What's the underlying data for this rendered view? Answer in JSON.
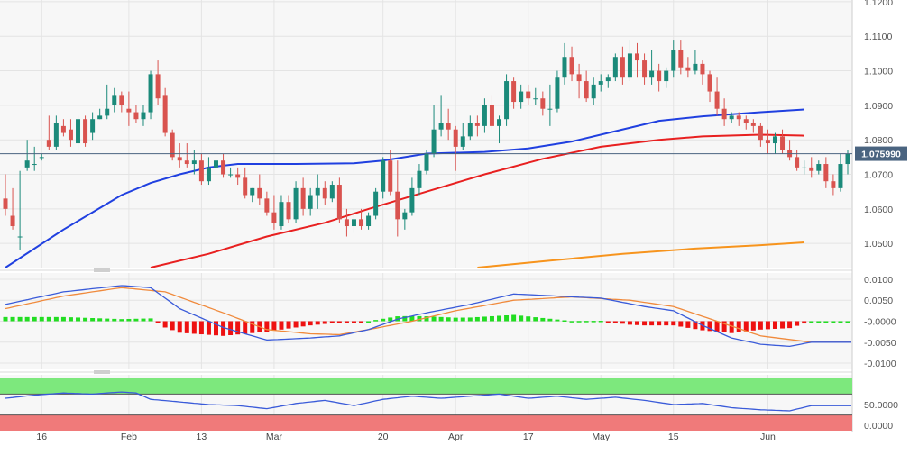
{
  "colors": {
    "bull": "#1b8a7a",
    "bear": "#d9534f",
    "sma_fast": "#2040e0",
    "sma_mid": "#e82020",
    "sma_slow": "#f7941d",
    "last_price_line": "#4a6480",
    "last_price_bg": "#4a6480",
    "panel_bg": "#f5f5f5",
    "macd_line": "#3a5bd9",
    "macd_signal": "#f08a3c",
    "hist_pos": "#22dd22",
    "hist_neg": "#ee1111",
    "rsi_line": "#3a5bd9",
    "rsi_overbought": "#7de87d",
    "rsi_oversold": "#f07a7a"
  },
  "chart_data": [
    {
      "type": "candlestick",
      "panel": "price",
      "ylim": [
        1.043,
        1.1205
      ],
      "y_ticks": [
        "1.1200",
        "1.1100",
        "1.1000",
        "1.0900",
        "1.0800",
        "1.0700",
        "1.0600",
        "1.0500"
      ],
      "last_price": "1.075990",
      "x_ticks": [
        {
          "label": "16",
          "index": 5
        },
        {
          "label": "Feb",
          "index": 17
        },
        {
          "label": "13",
          "index": 27
        },
        {
          "label": "Mar",
          "index": 37
        },
        {
          "label": "20",
          "index": 52
        },
        {
          "label": "Apr",
          "index": 62
        },
        {
          "label": "17",
          "index": 72
        },
        {
          "label": "May",
          "index": 82
        },
        {
          "label": "15",
          "index": 92
        },
        {
          "label": "Jun",
          "index": 105
        }
      ],
      "candles": [
        [
          1.063,
          1.07,
          1.06,
          1.058
        ],
        [
          1.058,
          1.066,
          1.055,
          1.054
        ],
        [
          1.052,
          1.071,
          1.052,
          1.048
        ],
        [
          1.072,
          1.08,
          1.074,
          1.071
        ],
        [
          1.073,
          1.078,
          1.073,
          1.071
        ],
        [
          1.075,
          1.076,
          1.075,
          1.074
        ],
        [
          1.08,
          1.087,
          1.078,
          1.077
        ],
        [
          1.078,
          1.087,
          1.085,
          1.077
        ],
        [
          1.084,
          1.086,
          1.082,
          1.081
        ],
        [
          1.083,
          1.086,
          1.08,
          1.078
        ],
        [
          1.079,
          1.087,
          1.086,
          1.077
        ],
        [
          1.086,
          1.087,
          1.079,
          1.078
        ],
        [
          1.082,
          1.088,
          1.086,
          1.08
        ],
        [
          1.086,
          1.089,
          1.087,
          1.086
        ],
        [
          1.087,
          1.096,
          1.089,
          1.086
        ],
        [
          1.09,
          1.095,
          1.093,
          1.088
        ],
        [
          1.093,
          1.094,
          1.09,
          1.088
        ],
        [
          1.089,
          1.094,
          1.088,
          1.084
        ],
        [
          1.088,
          1.09,
          1.086,
          1.085
        ],
        [
          1.086,
          1.09,
          1.088,
          1.084
        ],
        [
          1.088,
          1.1,
          1.099,
          1.086
        ],
        [
          1.099,
          1.103,
          1.092,
          1.09
        ],
        [
          1.093,
          1.095,
          1.082,
          1.081
        ],
        [
          1.082,
          1.083,
          1.075,
          1.074
        ],
        [
          1.075,
          1.079,
          1.074,
          1.072
        ],
        [
          1.074,
          1.079,
          1.073,
          1.072
        ],
        [
          1.073,
          1.077,
          1.074,
          1.07
        ],
        [
          1.074,
          1.076,
          1.068,
          1.067
        ],
        [
          1.068,
          1.075,
          1.072,
          1.067
        ],
        [
          1.072,
          1.08,
          1.074,
          1.07
        ],
        [
          1.074,
          1.076,
          1.07,
          1.069
        ],
        [
          1.07,
          1.072,
          1.07,
          1.069
        ],
        [
          1.07,
          1.072,
          1.069,
          1.067
        ],
        [
          1.069,
          1.072,
          1.064,
          1.063
        ],
        [
          1.064,
          1.066,
          1.066,
          1.062
        ],
        [
          1.066,
          1.07,
          1.063,
          1.061
        ],
        [
          1.063,
          1.065,
          1.059,
          1.058
        ],
        [
          1.059,
          1.064,
          1.056,
          1.054
        ],
        [
          1.055,
          1.064,
          1.062,
          1.054
        ],
        [
          1.062,
          1.064,
          1.057,
          1.056
        ],
        [
          1.057,
          1.068,
          1.066,
          1.056
        ],
        [
          1.066,
          1.069,
          1.06,
          1.058
        ],
        [
          1.06,
          1.066,
          1.064,
          1.058
        ],
        [
          1.064,
          1.07,
          1.066,
          1.06
        ],
        [
          1.066,
          1.068,
          1.063,
          1.061
        ],
        [
          1.063,
          1.068,
          1.067,
          1.062
        ],
        [
          1.067,
          1.069,
          1.057,
          1.056
        ],
        [
          1.057,
          1.06,
          1.055,
          1.052
        ],
        [
          1.055,
          1.06,
          1.057,
          1.053
        ],
        [
          1.057,
          1.06,
          1.055,
          1.054
        ],
        [
          1.055,
          1.059,
          1.058,
          1.054
        ],
        [
          1.058,
          1.066,
          1.065,
          1.057
        ],
        [
          1.065,
          1.075,
          1.074,
          1.063
        ],
        [
          1.074,
          1.077,
          1.065,
          1.064
        ],
        [
          1.065,
          1.074,
          1.057,
          1.052
        ],
        [
          1.057,
          1.06,
          1.059,
          1.054
        ],
        [
          1.059,
          1.069,
          1.066,
          1.058
        ],
        [
          1.066,
          1.073,
          1.071,
          1.064
        ],
        [
          1.071,
          1.077,
          1.076,
          1.07
        ],
        [
          1.076,
          1.09,
          1.083,
          1.075
        ],
        [
          1.083,
          1.093,
          1.085,
          1.081
        ],
        [
          1.085,
          1.089,
          1.083,
          1.08
        ],
        [
          1.083,
          1.084,
          1.078,
          1.071
        ],
        [
          1.078,
          1.085,
          1.081,
          1.077
        ],
        [
          1.081,
          1.087,
          1.085,
          1.08
        ],
        [
          1.085,
          1.087,
          1.084,
          1.081
        ],
        [
          1.084,
          1.092,
          1.09,
          1.082
        ],
        [
          1.09,
          1.093,
          1.084,
          1.083
        ],
        [
          1.084,
          1.087,
          1.086,
          1.079
        ],
        [
          1.086,
          1.099,
          1.097,
          1.084
        ],
        [
          1.097,
          1.098,
          1.091,
          1.089
        ],
        [
          1.091,
          1.096,
          1.094,
          1.089
        ],
        [
          1.094,
          1.096,
          1.092,
          1.09
        ],
        [
          1.092,
          1.095,
          1.092,
          1.09
        ],
        [
          1.092,
          1.094,
          1.089,
          1.087
        ],
        [
          1.089,
          1.096,
          1.089,
          1.084
        ],
        [
          1.089,
          1.1,
          1.098,
          1.088
        ],
        [
          1.098,
          1.108,
          1.104,
          1.096
        ],
        [
          1.104,
          1.107,
          1.099,
          1.097
        ],
        [
          1.099,
          1.102,
          1.097,
          1.092
        ],
        [
          1.097,
          1.1,
          1.092,
          1.091
        ],
        [
          1.092,
          1.098,
          1.096,
          1.09
        ],
        [
          1.096,
          1.099,
          1.097,
          1.094
        ],
        [
          1.097,
          1.099,
          1.098,
          1.095
        ],
        [
          1.098,
          1.105,
          1.104,
          1.097
        ],
        [
          1.104,
          1.107,
          1.098,
          1.096
        ],
        [
          1.098,
          1.109,
          1.105,
          1.097
        ],
        [
          1.105,
          1.108,
          1.103,
          1.098
        ],
        [
          1.103,
          1.105,
          1.098,
          1.096
        ],
        [
          1.098,
          1.106,
          1.1,
          1.096
        ],
        [
          1.1,
          1.102,
          1.097,
          1.094
        ],
        [
          1.097,
          1.101,
          1.1,
          1.095
        ],
        [
          1.1,
          1.109,
          1.106,
          1.098
        ],
        [
          1.106,
          1.109,
          1.101,
          1.099
        ],
        [
          1.101,
          1.104,
          1.1,
          1.098
        ],
        [
          1.1,
          1.106,
          1.102,
          1.099
        ],
        [
          1.102,
          1.103,
          1.099,
          1.096
        ],
        [
          1.099,
          1.1,
          1.094,
          1.091
        ],
        [
          1.094,
          1.098,
          1.089,
          1.087
        ]
      ],
      "candles_tail": [
        [
          1.089,
          1.092,
          1.086,
          1.084
        ],
        [
          1.086,
          1.088,
          1.087,
          1.085
        ],
        [
          1.087,
          1.088,
          1.086,
          1.084
        ],
        [
          1.086,
          1.087,
          1.085,
          1.083
        ],
        [
          1.085,
          1.086,
          1.084,
          1.082
        ],
        [
          1.084,
          1.085,
          1.08,
          1.078
        ],
        [
          1.08,
          1.083,
          1.079,
          1.076
        ],
        [
          1.079,
          1.082,
          1.081,
          1.076
        ],
        [
          1.081,
          1.083,
          1.077,
          1.076
        ],
        [
          1.077,
          1.08,
          1.075,
          1.074
        ],
        [
          1.075,
          1.077,
          1.072,
          1.071
        ],
        [
          1.072,
          1.074,
          1.072,
          1.07
        ],
        [
          1.072,
          1.075,
          1.071,
          1.069
        ],
        [
          1.071,
          1.074,
          1.073,
          1.07
        ],
        [
          1.073,
          1.075,
          1.068,
          1.066
        ],
        [
          1.068,
          1.07,
          1.066,
          1.064
        ],
        [
          1.066,
          1.076,
          1.073,
          1.065
        ],
        [
          1.073,
          1.077,
          1.076,
          1.07
        ]
      ],
      "sma_fast": [
        [
          0,
          1.043
        ],
        [
          8,
          1.054
        ],
        [
          16,
          1.064
        ],
        [
          20,
          1.0675
        ],
        [
          24,
          1.07
        ],
        [
          28,
          1.072
        ],
        [
          32,
          1.073
        ],
        [
          40,
          1.073
        ],
        [
          48,
          1.0732
        ],
        [
          52,
          1.074
        ],
        [
          58,
          1.076
        ],
        [
          66,
          1.0765
        ],
        [
          72,
          1.0775
        ],
        [
          78,
          1.0795
        ],
        [
          84,
          1.0825
        ],
        [
          90,
          1.0855
        ],
        [
          96,
          1.0868
        ],
        [
          104,
          1.088
        ],
        [
          110,
          1.0888
        ]
      ],
      "sma_mid": [
        [
          20,
          1.043
        ],
        [
          28,
          1.047
        ],
        [
          36,
          1.052
        ],
        [
          44,
          1.056
        ],
        [
          50,
          1.06
        ],
        [
          58,
          1.065
        ],
        [
          66,
          1.07
        ],
        [
          74,
          1.0745
        ],
        [
          82,
          1.078
        ],
        [
          90,
          1.08
        ],
        [
          96,
          1.081
        ],
        [
          104,
          1.0815
        ],
        [
          110,
          1.0812
        ]
      ],
      "sma_slow": [
        [
          65,
          1.043
        ],
        [
          75,
          1.045
        ],
        [
          85,
          1.047
        ],
        [
          95,
          1.0485
        ],
        [
          104,
          1.0495
        ],
        [
          110,
          1.0503
        ]
      ]
    },
    {
      "type": "macd",
      "panel": "macd",
      "ylim": [
        -0.0115,
        0.0115
      ],
      "y_ticks": [
        "0.0100",
        "0.0050",
        "-0.0000",
        "-0.0050",
        "-0.0100"
      ],
      "macd": [
        [
          0,
          0.004
        ],
        [
          8,
          0.007
        ],
        [
          16,
          0.0085
        ],
        [
          20,
          0.008
        ],
        [
          24,
          0.003
        ],
        [
          30,
          -0.0015
        ],
        [
          36,
          -0.0045
        ],
        [
          42,
          -0.004
        ],
        [
          46,
          -0.0035
        ],
        [
          50,
          -0.002
        ],
        [
          54,
          0.0005
        ],
        [
          58,
          0.002
        ],
        [
          64,
          0.004
        ],
        [
          70,
          0.0065
        ],
        [
          76,
          0.006
        ],
        [
          82,
          0.0055
        ],
        [
          88,
          0.0035
        ],
        [
          92,
          0.0025
        ],
        [
          96,
          -0.001
        ],
        [
          100,
          -0.004
        ],
        [
          104,
          -0.0055
        ],
        [
          108,
          -0.006
        ],
        [
          111,
          -0.005
        ]
      ],
      "signal": [
        [
          0,
          0.003
        ],
        [
          8,
          0.006
        ],
        [
          16,
          0.008
        ],
        [
          22,
          0.007
        ],
        [
          30,
          0.002
        ],
        [
          36,
          -0.002
        ],
        [
          42,
          -0.003
        ],
        [
          46,
          -0.0032
        ],
        [
          50,
          -0.002
        ],
        [
          56,
          0.0
        ],
        [
          62,
          0.0025
        ],
        [
          70,
          0.005
        ],
        [
          78,
          0.0058
        ],
        [
          86,
          0.005
        ],
        [
          92,
          0.0035
        ],
        [
          98,
          0.0
        ],
        [
          104,
          -0.0035
        ],
        [
          111,
          -0.005
        ]
      ],
      "hist_note": "computed as macd minus signal"
    },
    {
      "type": "rsi",
      "panel": "rsi",
      "ylim": [
        0,
        100
      ],
      "y_ticks": [
        "50.0000",
        "0.0000"
      ],
      "overbought": 70,
      "oversold": 30,
      "rsi": [
        [
          0,
          62
        ],
        [
          4,
          68
        ],
        [
          8,
          72
        ],
        [
          12,
          70
        ],
        [
          16,
          74
        ],
        [
          18,
          72
        ],
        [
          20,
          60
        ],
        [
          24,
          55
        ],
        [
          28,
          50
        ],
        [
          32,
          48
        ],
        [
          36,
          42
        ],
        [
          40,
          52
        ],
        [
          44,
          58
        ],
        [
          48,
          48
        ],
        [
          52,
          60
        ],
        [
          56,
          66
        ],
        [
          60,
          62
        ],
        [
          64,
          66
        ],
        [
          68,
          70
        ],
        [
          72,
          62
        ],
        [
          76,
          66
        ],
        [
          80,
          60
        ],
        [
          84,
          64
        ],
        [
          88,
          58
        ],
        [
          92,
          50
        ],
        [
          96,
          52
        ],
        [
          100,
          44
        ],
        [
          104,
          40
        ],
        [
          108,
          38
        ],
        [
          111,
          48
        ]
      ]
    }
  ]
}
